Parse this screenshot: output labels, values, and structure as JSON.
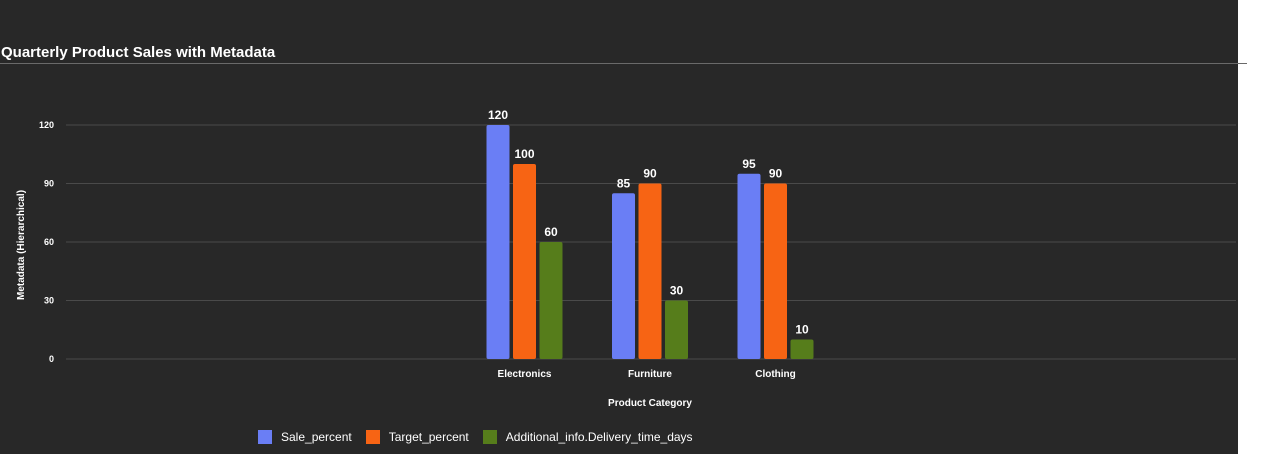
{
  "chart_data": {
    "type": "bar",
    "title": "Quarterly Product Sales with Metadata",
    "xlabel": "Product Category",
    "ylabel": "Metadata (Hierarchical)",
    "categories": [
      "Electronics",
      "Furniture",
      "Clothing"
    ],
    "series": [
      {
        "name": "Sale_percent",
        "values": [
          120,
          85,
          95
        ],
        "color": "#6a7ef5"
      },
      {
        "name": "Target_percent",
        "values": [
          100,
          90,
          90
        ],
        "color": "#f76414"
      },
      {
        "name": "Additional_info.Delivery_time_days",
        "values": [
          60,
          30,
          10
        ],
        "color": "#567d1b"
      }
    ],
    "ylim": [
      0,
      120
    ],
    "yticks": [
      0,
      30,
      60,
      90,
      120
    ],
    "grid": true,
    "data_labels": true,
    "legend": "bottom",
    "colors": {
      "background": "#282828",
      "text": "#ffffff",
      "grid": "#4a4a4a"
    }
  }
}
